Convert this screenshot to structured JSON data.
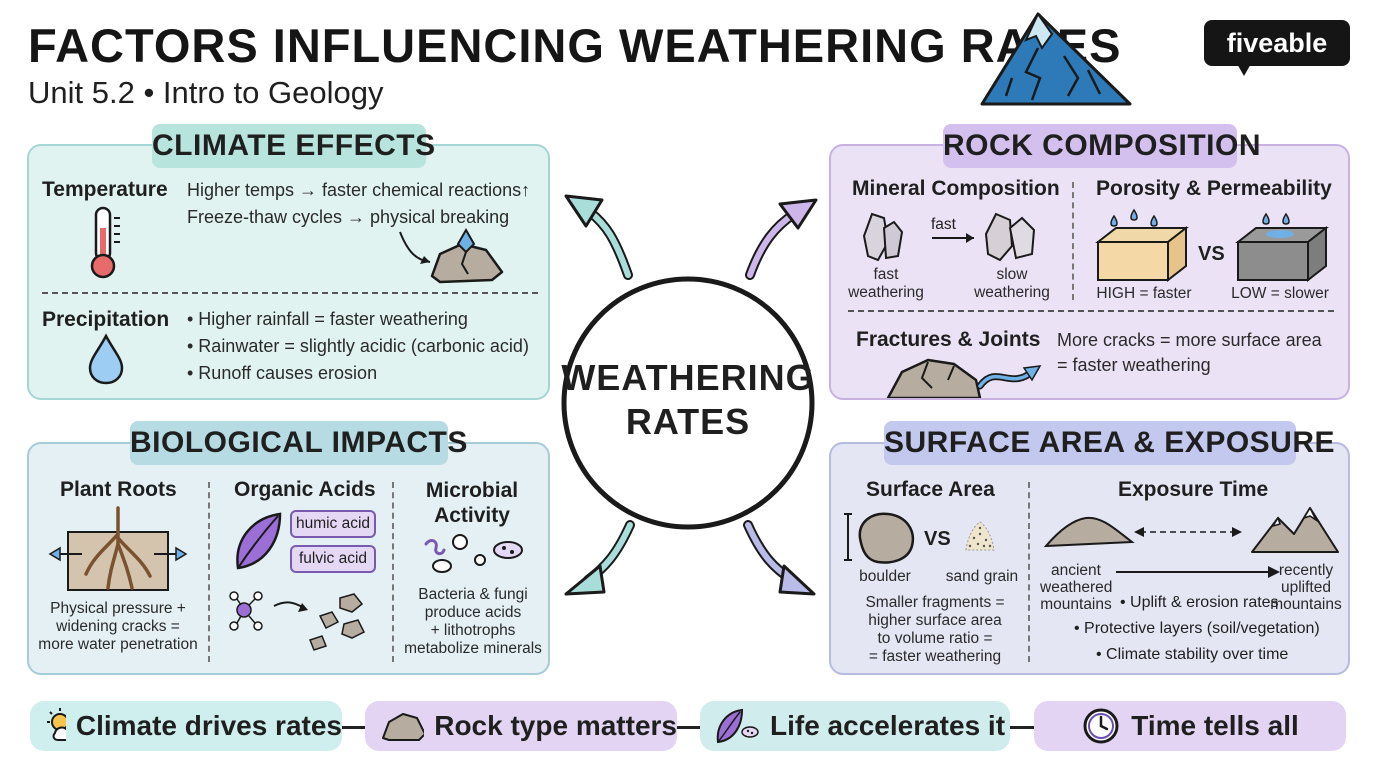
{
  "header": {
    "title": "FACTORS INFLUENCING WEATHERING RATES",
    "subtitle": "Unit 5.2 • Intro to Geology",
    "logo": "fiveable"
  },
  "center": {
    "line1": "WEATHERING",
    "line2": "RATES"
  },
  "climate": {
    "title": "CLIMATE EFFECTS",
    "temperature": {
      "heading": "Temperature",
      "lines": [
        "Higher temps → faster chemical reactions↑",
        "Freeze-thaw cycles → physical breaking"
      ]
    },
    "precipitation": {
      "heading": "Precipitation",
      "lines": [
        "• Higher rainfall = faster weathering",
        "• Rainwater = slightly acidic (carbonic acid)",
        "• Runoff causes erosion"
      ]
    }
  },
  "rock": {
    "title": "ROCK COMPOSITION",
    "mineral": {
      "heading": "Mineral Composition",
      "arrow_label": "fast",
      "left_label": [
        "fast",
        "weathering"
      ],
      "right_label": [
        "slow",
        "weathering"
      ]
    },
    "porosity": {
      "heading": "Porosity & Permeability",
      "vs": "VS",
      "high": "HIGH = faster",
      "low": "LOW = slower"
    },
    "fractures": {
      "heading": "Fractures & Joints",
      "lines": [
        "More cracks = more surface area",
        "= faster weathering"
      ]
    }
  },
  "bio": {
    "title": "BIOLOGICAL IMPACTS",
    "roots": {
      "heading": "Plant Roots",
      "lines": [
        "Physical pressure +",
        "widening cracks =",
        "more water penetration"
      ]
    },
    "acids": {
      "heading": "Organic Acids",
      "tags": [
        "humic acid",
        "fulvic acid"
      ]
    },
    "microbial": {
      "heading": [
        "Microbial",
        "Activity"
      ],
      "lines": [
        "Bacteria & fungi",
        "produce acids",
        "+ lithotrophs",
        "metabolize minerals"
      ]
    }
  },
  "surface": {
    "title": "SURFACE AREA & EXPOSURE",
    "area": {
      "heading": "Surface Area",
      "vs": "VS",
      "boulder": "boulder",
      "sand": "sand grain",
      "lines": [
        "Smaller fragments =",
        "higher surface area",
        "to volume ratio =",
        "= faster weathering"
      ]
    },
    "exposure": {
      "heading": "Exposure Time",
      "left_label": [
        "ancient",
        "weathered",
        "mountains"
      ],
      "right_label": [
        "recently",
        "uplifted",
        "mountains"
      ],
      "bullets": [
        "• Uplift & erosion rates",
        "• Protective layers (soil/vegetation)",
        "• Climate stability over time"
      ]
    }
  },
  "summary": [
    "Climate drives rates",
    "Rock type matters",
    "Life accelerates it",
    "Time tells all"
  ],
  "colors": {
    "climate_bg": "#e0f3f1",
    "rock_bg": "#ece2f6",
    "bio_bg": "#e4f0f4",
    "surface_bg": "#e4e6f4"
  }
}
